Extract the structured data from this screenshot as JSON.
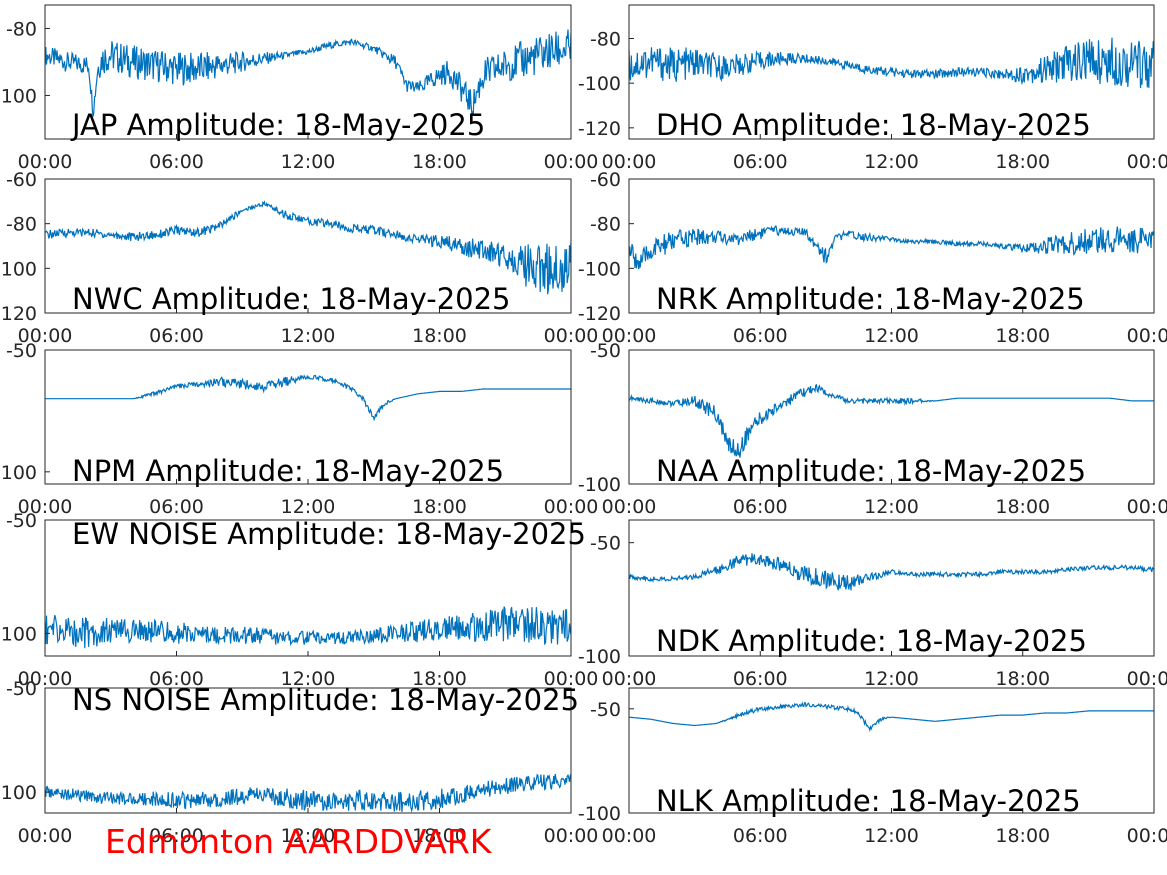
{
  "colors": {
    "series": "#0072bd",
    "axis": "#262626",
    "footer": "#ff0000"
  },
  "footer": "Edmonton AARDDVARK",
  "chart_data": [
    {
      "type": "line",
      "title": "JAP Amplitude: 18-May-2025",
      "xlim": [
        "00:00",
        "24:00"
      ],
      "xticks": [
        "00:00",
        "06:00",
        "12:00",
        "18:00",
        "00:00"
      ],
      "ylim": [
        -113,
        -73
      ],
      "yticks": [
        {
          "v": -80,
          "label": "-80"
        },
        {
          "v": -100,
          "label": "100"
        }
      ],
      "series": [
        {
          "x": [
            0,
            1,
            2,
            2.2,
            2.4,
            2.6,
            3,
            4,
            5,
            6,
            7,
            8,
            9,
            10,
            11,
            12,
            13,
            14,
            15,
            16,
            16.5,
            17,
            18,
            18.5,
            19,
            19.5,
            20,
            21,
            22,
            23,
            24
          ],
          "y": [
            -88,
            -90,
            -91,
            -105,
            -92,
            -89,
            -88,
            -90,
            -91,
            -92,
            -92,
            -91,
            -90,
            -89,
            -88,
            -87,
            -85,
            -84,
            -86,
            -90,
            -97,
            -98,
            -94,
            -93,
            -98,
            -103,
            -94,
            -91,
            -89,
            -87,
            -86
          ],
          "noise": [
            3,
            3,
            3,
            2,
            4,
            5,
            5,
            5,
            5,
            5,
            5,
            4,
            3,
            2,
            1,
            1,
            1,
            1,
            1,
            2,
            2,
            2,
            3,
            4,
            4,
            4,
            5,
            5,
            6,
            6,
            6
          ]
        }
      ]
    },
    {
      "type": "line",
      "title": "DHO Amplitude: 18-May-2025",
      "xlim": [
        "00:00",
        "24:00"
      ],
      "xticks": [
        "00:00",
        "06:00",
        "12:00",
        "18:00",
        "00:00"
      ],
      "ylim": [
        -125,
        -65
      ],
      "yticks": [
        {
          "v": -80,
          "label": "-80"
        },
        {
          "v": -100,
          "label": "-100"
        },
        {
          "v": -120,
          "label": "-120"
        }
      ],
      "series": [
        {
          "x": [
            0,
            1,
            2,
            3,
            4,
            5,
            6,
            7,
            8,
            9,
            10,
            11,
            12,
            13,
            14,
            15,
            16,
            17,
            18,
            19,
            20,
            21,
            22,
            23,
            24
          ],
          "y": [
            -92,
            -90,
            -92,
            -91,
            -93,
            -92,
            -90,
            -89,
            -89,
            -90,
            -92,
            -94,
            -95,
            -96,
            -96,
            -95,
            -95,
            -96,
            -96,
            -94,
            -91,
            -90,
            -90,
            -91,
            -92
          ],
          "noise": [
            8,
            8,
            8,
            7,
            6,
            5,
            4,
            3,
            2,
            2,
            2,
            2,
            2,
            2,
            2,
            2,
            2,
            2,
            4,
            6,
            9,
            10,
            11,
            11,
            11
          ]
        }
      ]
    },
    {
      "type": "line",
      "title": "NWC Amplitude: 18-May-2025",
      "xlim": [
        "00:00",
        "24:00"
      ],
      "xticks": [
        "00:00",
        "06:00",
        "12:00",
        "18:00",
        "00:00"
      ],
      "ylim": [
        -120,
        -60
      ],
      "yticks": [
        {
          "v": -60,
          "label": "-60"
        },
        {
          "v": -80,
          "label": "-80"
        },
        {
          "v": -100,
          "label": "100"
        },
        {
          "v": -120,
          "label": "120"
        }
      ],
      "series": [
        {
          "x": [
            0,
            1,
            2,
            3,
            4,
            5,
            6,
            7,
            8,
            9,
            10,
            11,
            12,
            13,
            14,
            15,
            16,
            17,
            18,
            19,
            20,
            21,
            22,
            23,
            24
          ],
          "y": [
            -85,
            -84,
            -84,
            -85,
            -86,
            -85,
            -83,
            -84,
            -81,
            -74,
            -71,
            -76,
            -79,
            -80,
            -82,
            -83,
            -85,
            -87,
            -88,
            -90,
            -92,
            -94,
            -99,
            -100,
            -98
          ],
          "noise": [
            2,
            2,
            2,
            2,
            2,
            2,
            2,
            2,
            2,
            1,
            1,
            2,
            2,
            2,
            2,
            2,
            2,
            2,
            3,
            4,
            5,
            6,
            10,
            12,
            12
          ]
        }
      ]
    },
    {
      "type": "line",
      "title": "NRK Amplitude: 18-May-2025",
      "xlim": [
        "00:00",
        "24:00"
      ],
      "xticks": [
        "00:00",
        "06:00",
        "12:00",
        "18:00",
        "00:00"
      ],
      "ylim": [
        -120,
        -60
      ],
      "yticks": [
        {
          "v": -60,
          "label": "-60"
        },
        {
          "v": -80,
          "label": "-80"
        },
        {
          "v": -100,
          "label": "-100"
        },
        {
          "v": -120,
          "label": "-120"
        }
      ],
      "series": [
        {
          "x": [
            0,
            0.5,
            1,
            2,
            3,
            4,
            5,
            6,
            7,
            8,
            8.5,
            9,
            9.5,
            10,
            11,
            12,
            13,
            14,
            15,
            16,
            17,
            18,
            19,
            20,
            21,
            22,
            23,
            24
          ],
          "y": [
            -92,
            -98,
            -92,
            -88,
            -86,
            -86,
            -87,
            -84,
            -83,
            -84,
            -88,
            -95,
            -86,
            -85,
            -86,
            -87,
            -88,
            -88,
            -89,
            -89,
            -90,
            -91,
            -90,
            -89,
            -88,
            -87,
            -87,
            -88
          ],
          "noise": [
            5,
            5,
            5,
            5,
            4,
            3,
            3,
            3,
            2,
            2,
            3,
            4,
            2,
            2,
            2,
            1,
            1,
            1,
            1,
            1,
            1,
            2,
            4,
            5,
            6,
            6,
            6,
            6
          ]
        }
      ]
    },
    {
      "type": "line",
      "title": "NPM Amplitude: 18-May-2025",
      "xlim": [
        "00:00",
        "24:00"
      ],
      "xticks": [
        "00:00",
        "06:00",
        "12:00",
        "18:00",
        "00:00"
      ],
      "ylim": [
        -105,
        -50
      ],
      "yticks": [
        {
          "v": -50,
          "label": "-50"
        },
        {
          "v": -100,
          "label": "100"
        }
      ],
      "series": [
        {
          "x": [
            0,
            1,
            2,
            3,
            4,
            5,
            6,
            7,
            8,
            9,
            10,
            11,
            12,
            13,
            14,
            14.5,
            15,
            15.5,
            16,
            17,
            18,
            19,
            20,
            21,
            22,
            23,
            24
          ],
          "y": [
            -70,
            -70,
            -70,
            -70,
            -70,
            -68,
            -65,
            -64,
            -63,
            -64,
            -65,
            -63,
            -61,
            -62,
            -66,
            -70,
            -78,
            -72,
            -70,
            -68,
            -67,
            -67,
            -66,
            -66,
            -66,
            -66,
            -66
          ],
          "noise": [
            0,
            0,
            0,
            0,
            0,
            1,
            1,
            1,
            2,
            2,
            2,
            2,
            1,
            1,
            1,
            1,
            1,
            1,
            0,
            0,
            0,
            0,
            0,
            0,
            0,
            0,
            0
          ]
        }
      ]
    },
    {
      "type": "line",
      "title": "NAA Amplitude: 18-May-2025",
      "xlim": [
        "00:00",
        "24:00"
      ],
      "xticks": [
        "00:00",
        "06:00",
        "12:00",
        "18:00",
        "00:00"
      ],
      "ylim": [
        -100,
        -50
      ],
      "yticks": [
        {
          "v": -50,
          "label": "-50"
        },
        {
          "v": -100,
          "label": "-100"
        }
      ],
      "series": [
        {
          "x": [
            0,
            1,
            2,
            3,
            4,
            4.5,
            5,
            5.5,
            6,
            7,
            8,
            8.5,
            9,
            10,
            11,
            12,
            13,
            14,
            15,
            16,
            17,
            18,
            19,
            20,
            21,
            22,
            23,
            24
          ],
          "y": [
            -68,
            -69,
            -70,
            -69,
            -74,
            -85,
            -88,
            -80,
            -76,
            -70,
            -66,
            -64,
            -66,
            -69,
            -69,
            -69,
            -69,
            -69,
            -68,
            -68,
            -68,
            -68,
            -68,
            -68,
            -68,
            -68,
            -69,
            -69
          ],
          "noise": [
            1,
            1,
            1,
            2,
            3,
            4,
            4,
            3,
            3,
            2,
            2,
            2,
            1,
            1,
            1,
            1,
            1,
            0,
            0,
            0,
            0,
            0,
            0,
            0,
            0,
            0,
            0,
            0
          ]
        }
      ]
    },
    {
      "type": "line",
      "title": "EW NOISE Amplitude: 18-May-2025",
      "xlim": [
        "00:00",
        "24:00"
      ],
      "xticks": [
        "00:00",
        "06:00",
        "12:00",
        "18:00",
        "00:00"
      ],
      "ylim": [
        -110,
        -50
      ],
      "yticks": [
        {
          "v": -50,
          "label": "-50"
        },
        {
          "v": -100,
          "label": "100"
        }
      ],
      "series": [
        {
          "x": [
            0,
            1,
            2,
            3,
            4,
            5,
            6,
            7,
            8,
            9,
            10,
            11,
            12,
            13,
            14,
            15,
            16,
            17,
            18,
            19,
            20,
            21,
            22,
            23,
            24
          ],
          "y": [
            -98,
            -99,
            -100,
            -99,
            -99,
            -99,
            -100,
            -100,
            -101,
            -101,
            -101,
            -102,
            -102,
            -102,
            -102,
            -101,
            -100,
            -99,
            -98,
            -97,
            -97,
            -96,
            -96,
            -97,
            -97
          ],
          "noise": [
            7,
            7,
            7,
            6,
            5,
            5,
            5,
            4,
            4,
            4,
            4,
            3,
            3,
            3,
            3,
            3,
            4,
            5,
            5,
            6,
            7,
            8,
            8,
            8,
            8
          ]
        }
      ]
    },
    {
      "type": "line",
      "title": "NDK Amplitude: 18-May-2025",
      "xlim": [
        "00:00",
        "24:00"
      ],
      "xticks": [
        "00:00",
        "06:00",
        "12:00",
        "18:00",
        "00:00"
      ],
      "ylim": [
        -100,
        -40
      ],
      "yticks": [
        {
          "v": -50,
          "label": "-50"
        },
        {
          "v": -100,
          "label": "-100"
        }
      ],
      "series": [
        {
          "x": [
            0,
            1,
            2,
            3,
            4,
            5,
            6,
            7,
            8,
            9,
            10,
            11,
            12,
            13,
            14,
            15,
            16,
            17,
            18,
            19,
            20,
            21,
            22,
            23,
            24
          ],
          "y": [
            -65,
            -66,
            -66,
            -65,
            -62,
            -58,
            -57,
            -60,
            -64,
            -66,
            -68,
            -65,
            -63,
            -64,
            -64,
            -64,
            -64,
            -63,
            -63,
            -63,
            -62,
            -61,
            -61,
            -61,
            -62
          ],
          "noise": [
            1,
            1,
            1,
            1,
            2,
            3,
            3,
            3,
            4,
            4,
            4,
            2,
            1,
            1,
            1,
            1,
            1,
            1,
            1,
            1,
            1,
            1,
            1,
            1,
            1
          ]
        }
      ]
    },
    {
      "type": "line",
      "title": "NS NOISE Amplitude: 18-May-2025",
      "xlim": [
        "00:00",
        "24:00"
      ],
      "xticks": [
        "00:00",
        "06:00",
        "12:00",
        "18:00",
        "00:00"
      ],
      "ylim": [
        -110,
        -50
      ],
      "yticks": [
        {
          "v": -50,
          "label": "-50"
        },
        {
          "v": -100,
          "label": "100"
        }
      ],
      "series": [
        {
          "x": [
            0,
            1,
            2,
            3,
            4,
            5,
            6,
            7,
            8,
            9,
            10,
            11,
            12,
            13,
            14,
            15,
            16,
            17,
            18,
            19,
            20,
            21,
            22,
            23,
            24
          ],
          "y": [
            -100,
            -101,
            -102,
            -103,
            -103,
            -103,
            -104,
            -104,
            -103,
            -102,
            -101,
            -103,
            -104,
            -104,
            -104,
            -104,
            -105,
            -104,
            -103,
            -101,
            -99,
            -97,
            -96,
            -95,
            -94
          ],
          "noise": [
            3,
            3,
            3,
            3,
            3,
            4,
            4,
            4,
            4,
            4,
            4,
            5,
            5,
            5,
            5,
            5,
            5,
            5,
            5,
            4,
            4,
            4,
            4,
            4,
            3
          ]
        }
      ]
    },
    {
      "type": "line",
      "title": "NLK Amplitude: 18-May-2025",
      "xlim": [
        "00:00",
        "24:00"
      ],
      "xticks": [
        "00:00",
        "06:00",
        "12:00",
        "18:00",
        "00:00"
      ],
      "ylim": [
        -100,
        -40
      ],
      "yticks": [
        {
          "v": -50,
          "label": "-50"
        },
        {
          "v": -100,
          "label": "-100"
        }
      ],
      "series": [
        {
          "x": [
            0,
            1,
            2,
            3,
            4,
            5,
            6,
            7,
            8,
            9,
            10,
            10.5,
            11,
            11.5,
            12,
            13,
            14,
            15,
            16,
            17,
            18,
            19,
            20,
            21,
            22,
            23,
            24
          ],
          "y": [
            -54,
            -55,
            -57,
            -58,
            -57,
            -53,
            -50,
            -49,
            -48,
            -49,
            -50,
            -52,
            -60,
            -55,
            -54,
            -55,
            -56,
            -55,
            -54,
            -53,
            -53,
            -52,
            -52,
            -51,
            -51,
            -51,
            -51
          ],
          "noise": [
            0,
            0,
            0,
            0,
            0,
            1,
            1,
            1,
            1,
            1,
            1,
            1,
            1,
            1,
            0,
            0,
            0,
            0,
            0,
            0,
            0,
            0,
            0,
            0,
            0,
            0,
            0
          ]
        }
      ]
    }
  ]
}
